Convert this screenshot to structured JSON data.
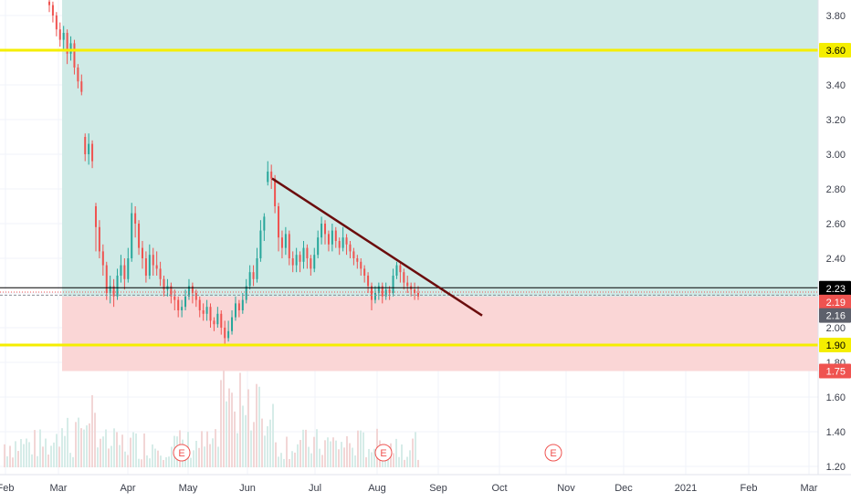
{
  "chart_data": {
    "type": "candlestick",
    "price_axis": {
      "min": 1.18,
      "max": 3.9,
      "ticks": [
        "3.80",
        "3.60",
        "3.40",
        "3.20",
        "3.00",
        "2.80",
        "2.60",
        "2.40",
        "2.20",
        "2.00",
        "1.80",
        "1.60",
        "1.40",
        "1.20"
      ]
    },
    "time_axis": {
      "labels": [
        "Feb",
        "Mar",
        "Apr",
        "May",
        "Jun",
        "Jul",
        "Aug",
        "Sep",
        "Oct",
        "Nov",
        "Dec",
        "2021",
        "Feb",
        "Mar"
      ]
    },
    "zones": {
      "profit": {
        "top": 3.9,
        "bottom": 2.18,
        "color": "#cfeae6"
      },
      "loss": {
        "top": 2.18,
        "bottom": 1.75,
        "color": "#fad6d6"
      }
    },
    "horizontal_lines": [
      {
        "price": 3.6,
        "color": "#f5ee00"
      },
      {
        "price": 1.9,
        "color": "#f5ee00"
      },
      {
        "price": 2.23,
        "color": "#000000"
      },
      {
        "price": 2.19,
        "color": "#8a8f98"
      }
    ],
    "trendline": {
      "color": "#6b0d0d"
    },
    "price_tags": [
      {
        "text": "3.60",
        "bg": "#f5ee00",
        "fg": "#000000"
      },
      {
        "text": "2.23",
        "bg": "#000000",
        "fg": "#ffffff"
      },
      {
        "text": "2.19",
        "bg": "#ef5350",
        "fg": "#ffffff"
      },
      {
        "text": "2.16",
        "bg": "#5d606b",
        "fg": "#ffffff"
      },
      {
        "text": "1.90",
        "bg": "#f5ee00",
        "fg": "#000000"
      },
      {
        "text": "1.75",
        "bg": "#ef5350",
        "fg": "#ffffff"
      }
    ],
    "events": [
      "E",
      "E",
      "E"
    ],
    "candles": [
      [
        3.88,
        3.86,
        3.9,
        3.82
      ],
      [
        3.86,
        3.8,
        3.88,
        3.76
      ],
      [
        3.8,
        3.72,
        3.82,
        3.68
      ],
      [
        3.72,
        3.66,
        3.76,
        3.62
      ],
      [
        3.66,
        3.7,
        3.74,
        3.6
      ],
      [
        3.7,
        3.58,
        3.72,
        3.52
      ],
      [
        3.58,
        3.64,
        3.68,
        3.54
      ],
      [
        3.64,
        3.5,
        3.66,
        3.46
      ],
      [
        3.5,
        3.42,
        3.52,
        3.38
      ],
      [
        3.42,
        3.36,
        3.46,
        3.34
      ],
      [
        3.1,
        3.0,
        3.12,
        2.96
      ],
      [
        3.0,
        3.06,
        3.12,
        2.94
      ],
      [
        3.06,
        2.96,
        3.08,
        2.92
      ],
      [
        2.7,
        2.58,
        2.72,
        2.44
      ],
      [
        2.58,
        2.44,
        2.62,
        2.4
      ],
      [
        2.44,
        2.36,
        2.48,
        2.3
      ],
      [
        2.36,
        2.2,
        2.38,
        2.16
      ],
      [
        2.2,
        2.24,
        2.3,
        2.14
      ],
      [
        2.24,
        2.18,
        2.28,
        2.12
      ],
      [
        2.18,
        2.3,
        2.34,
        2.16
      ],
      [
        2.3,
        2.36,
        2.42,
        2.26
      ],
      [
        2.36,
        2.28,
        2.4,
        2.22
      ],
      [
        2.28,
        2.4,
        2.46,
        2.26
      ],
      [
        2.4,
        2.66,
        2.72,
        2.38
      ],
      [
        2.66,
        2.6,
        2.7,
        2.52
      ],
      [
        2.6,
        2.46,
        2.62,
        2.42
      ],
      [
        2.46,
        2.4,
        2.5,
        2.34
      ],
      [
        2.4,
        2.3,
        2.44,
        2.26
      ],
      [
        2.3,
        2.42,
        2.48,
        2.28
      ],
      [
        2.42,
        2.36,
        2.46,
        2.3
      ],
      [
        2.36,
        2.34,
        2.44,
        2.3
      ],
      [
        2.34,
        2.28,
        2.38,
        2.24
      ],
      [
        2.28,
        2.22,
        2.3,
        2.18
      ],
      [
        2.22,
        2.24,
        2.28,
        2.18
      ],
      [
        2.24,
        2.18,
        2.26,
        2.14
      ],
      [
        2.18,
        2.16,
        2.22,
        2.1
      ],
      [
        2.16,
        2.1,
        2.18,
        2.06
      ],
      [
        2.1,
        2.12,
        2.16,
        2.06
      ],
      [
        2.12,
        2.18,
        2.22,
        2.1
      ],
      [
        2.18,
        2.24,
        2.28,
        2.16
      ],
      [
        2.24,
        2.2,
        2.26,
        2.14
      ],
      [
        2.2,
        2.16,
        2.22,
        2.12
      ],
      [
        2.16,
        2.1,
        2.18,
        2.06
      ],
      [
        2.1,
        2.08,
        2.14,
        2.04
      ],
      [
        2.08,
        2.12,
        2.16,
        2.04
      ],
      [
        2.12,
        2.04,
        2.14,
        2.0
      ],
      [
        2.04,
        2.02,
        2.06,
        1.98
      ],
      [
        2.02,
        2.08,
        2.12,
        2.0
      ],
      [
        2.08,
        2.0,
        2.1,
        1.96
      ],
      [
        2.0,
        1.94,
        2.04,
        1.9
      ],
      [
        1.94,
        1.98,
        2.04,
        1.92
      ],
      [
        1.98,
        2.06,
        2.1,
        1.96
      ],
      [
        2.06,
        2.14,
        2.18,
        2.04
      ],
      [
        2.14,
        2.1,
        2.16,
        2.06
      ],
      [
        2.1,
        2.16,
        2.2,
        2.08
      ],
      [
        2.16,
        2.24,
        2.28,
        2.14
      ],
      [
        2.24,
        2.32,
        2.36,
        2.22
      ],
      [
        2.32,
        2.28,
        2.36,
        2.24
      ],
      [
        2.28,
        2.4,
        2.46,
        2.26
      ],
      [
        2.4,
        2.56,
        2.62,
        2.38
      ],
      [
        2.56,
        2.64,
        2.66,
        2.5
      ],
      [
        2.84,
        2.9,
        2.96,
        2.82
      ],
      [
        2.9,
        2.86,
        2.94,
        2.8
      ],
      [
        2.86,
        2.7,
        2.88,
        2.66
      ],
      [
        2.7,
        2.52,
        2.72,
        2.44
      ],
      [
        2.52,
        2.46,
        2.56,
        2.4
      ],
      [
        2.46,
        2.54,
        2.58,
        2.42
      ],
      [
        2.54,
        2.4,
        2.56,
        2.36
      ],
      [
        2.4,
        2.36,
        2.44,
        2.32
      ],
      [
        2.36,
        2.42,
        2.46,
        2.32
      ],
      [
        2.42,
        2.38,
        2.44,
        2.32
      ],
      [
        2.38,
        2.46,
        2.5,
        2.34
      ],
      [
        2.46,
        2.4,
        2.48,
        2.34
      ],
      [
        2.4,
        2.34,
        2.42,
        2.3
      ],
      [
        2.34,
        2.42,
        2.46,
        2.32
      ],
      [
        2.42,
        2.52,
        2.56,
        2.4
      ],
      [
        2.52,
        2.6,
        2.64,
        2.48
      ],
      [
        2.6,
        2.54,
        2.62,
        2.48
      ],
      [
        2.54,
        2.48,
        2.56,
        2.44
      ],
      [
        2.48,
        2.56,
        2.6,
        2.44
      ],
      [
        2.56,
        2.5,
        2.58,
        2.46
      ],
      [
        2.5,
        2.46,
        2.52,
        2.42
      ],
      [
        2.46,
        2.52,
        2.58,
        2.44
      ],
      [
        2.52,
        2.48,
        2.54,
        2.42
      ],
      [
        2.48,
        2.44,
        2.5,
        2.4
      ],
      [
        2.44,
        2.4,
        2.46,
        2.36
      ],
      [
        2.4,
        2.38,
        2.42,
        2.34
      ],
      [
        2.38,
        2.34,
        2.4,
        2.3
      ],
      [
        2.34,
        2.3,
        2.36,
        2.26
      ],
      [
        2.3,
        2.24,
        2.32,
        2.2
      ],
      [
        2.24,
        2.16,
        2.26,
        2.1
      ],
      [
        2.16,
        2.2,
        2.24,
        2.14
      ],
      [
        2.2,
        2.24,
        2.26,
        2.16
      ],
      [
        2.24,
        2.18,
        2.26,
        2.14
      ],
      [
        2.18,
        2.22,
        2.26,
        2.16
      ],
      [
        2.22,
        2.2,
        2.24,
        2.16
      ],
      [
        2.2,
        2.3,
        2.34,
        2.18
      ],
      [
        2.3,
        2.36,
        2.38,
        2.28
      ],
      [
        2.36,
        2.32,
        2.38,
        2.26
      ],
      [
        2.32,
        2.26,
        2.34,
        2.22
      ],
      [
        2.26,
        2.24,
        2.3,
        2.2
      ],
      [
        2.24,
        2.22,
        2.26,
        2.18
      ],
      [
        2.22,
        2.2,
        2.26,
        2.16
      ],
      [
        2.2,
        2.18,
        2.24,
        2.16
      ]
    ]
  }
}
